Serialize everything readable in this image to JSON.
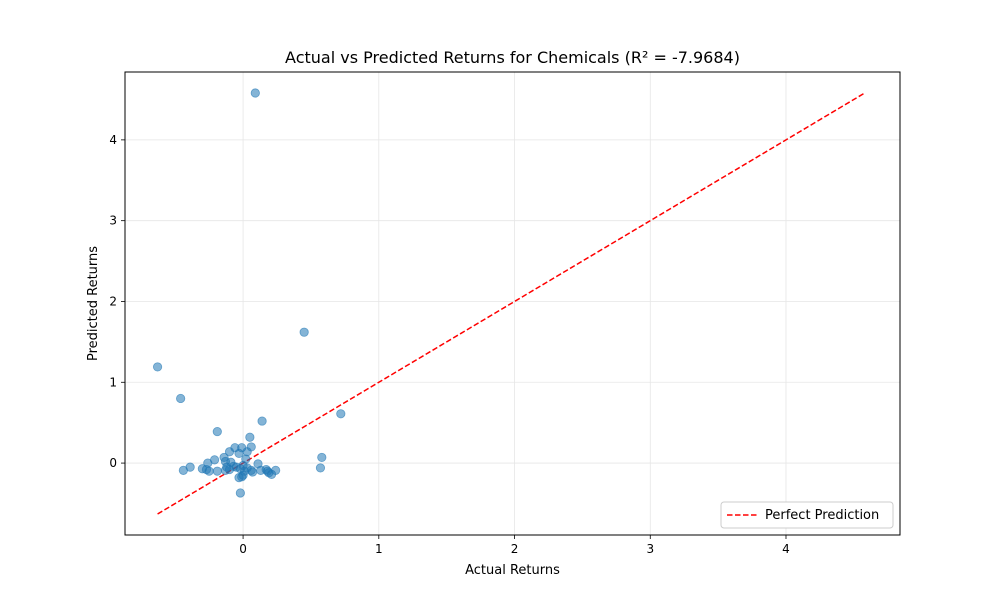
{
  "chart_data": {
    "type": "scatter",
    "title": "Actual vs Predicted Returns for Chemicals (R² = -7.9684)",
    "xlabel": "Actual Returns",
    "ylabel": "Predicted Returns",
    "xlim": [
      -0.87,
      4.84
    ],
    "ylim": [
      -0.89,
      4.84
    ],
    "xticks": [
      0,
      1,
      2,
      3,
      4
    ],
    "yticks": [
      0,
      1,
      2,
      3,
      4
    ],
    "grid": true,
    "legend": {
      "position": "lower-right",
      "entries": [
        "Perfect Prediction"
      ]
    },
    "colors": {
      "points": "#1f77b4",
      "reference_line": "#ff0000",
      "grid": "#e6e6e6"
    },
    "reference_line": {
      "name": "Perfect Prediction",
      "x": [
        -0.63,
        4.58
      ],
      "y": [
        -0.63,
        4.58
      ],
      "style": "dashed"
    },
    "series": [
      {
        "type": "scatter",
        "points": [
          [
            0.09,
            4.58
          ],
          [
            0.45,
            1.62
          ],
          [
            -0.63,
            1.19
          ],
          [
            -0.46,
            0.8
          ],
          [
            0.72,
            0.61
          ],
          [
            0.14,
            0.52
          ],
          [
            -0.19,
            0.39
          ],
          [
            0.05,
            0.32
          ],
          [
            0.06,
            0.2
          ],
          [
            -0.06,
            0.19
          ],
          [
            -0.01,
            0.19
          ],
          [
            -0.1,
            0.14
          ],
          [
            0.03,
            0.14
          ],
          [
            -0.03,
            0.12
          ],
          [
            0.58,
            0.07
          ],
          [
            -0.14,
            0.07
          ],
          [
            -0.21,
            0.04
          ],
          [
            0.02,
            0.05
          ],
          [
            -0.13,
            0.02
          ],
          [
            -0.26,
            0.0
          ],
          [
            -0.09,
            0.01
          ],
          [
            0.11,
            -0.01
          ],
          [
            0.0,
            -0.03
          ],
          [
            -0.39,
            -0.05
          ],
          [
            -0.07,
            -0.04
          ],
          [
            -0.12,
            -0.05
          ],
          [
            0.57,
            -0.06
          ],
          [
            -0.3,
            -0.07
          ],
          [
            -0.44,
            -0.09
          ],
          [
            -0.27,
            -0.08
          ],
          [
            -0.1,
            -0.08
          ],
          [
            0.17,
            -0.08
          ],
          [
            0.24,
            -0.09
          ],
          [
            0.06,
            -0.09
          ],
          [
            -0.02,
            -0.07
          ],
          [
            -0.19,
            -0.1
          ],
          [
            0.18,
            -0.1
          ],
          [
            -0.25,
            -0.1
          ],
          [
            0.07,
            -0.11
          ],
          [
            0.13,
            -0.09
          ],
          [
            0.01,
            -0.1
          ],
          [
            -0.13,
            -0.09
          ],
          [
            0.19,
            -0.12
          ],
          [
            0.21,
            -0.14
          ],
          [
            0.0,
            -0.15
          ],
          [
            -0.01,
            -0.17
          ],
          [
            -0.03,
            -0.18
          ],
          [
            -0.02,
            -0.37
          ],
          [
            0.03,
            -0.06
          ],
          [
            -0.05,
            -0.05
          ]
        ]
      }
    ]
  }
}
